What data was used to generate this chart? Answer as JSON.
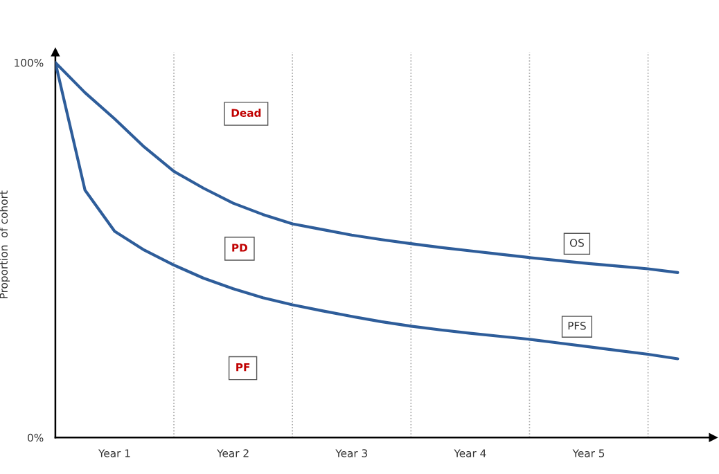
{
  "chart_data": {
    "type": "line",
    "ylabel": "Proportion  of cohort",
    "categories": [
      null,
      null,
      "Year 1",
      null,
      null,
      null,
      "Year 2",
      null,
      null,
      null,
      "Year 3",
      null,
      null,
      null,
      "Year 4",
      null,
      null,
      null,
      "Year 5",
      null,
      null,
      null
    ],
    "series": [
      {
        "name": "OS",
        "color": "#2e5d9a",
        "values": [
          100,
          92,
          85,
          77.5,
          71,
          66.5,
          62.5,
          59.5,
          57,
          55.5,
          54,
          52.8,
          51.7,
          50.7,
          49.8,
          48.9,
          48,
          47.2,
          46.4,
          45.7,
          45,
          44
        ]
      },
      {
        "name": "PFS",
        "color": "#2e5d9a",
        "values": [
          100,
          66,
          55,
          50,
          46,
          42.5,
          39.7,
          37.3,
          35.4,
          33.8,
          32.3,
          30.9,
          29.7,
          28.7,
          27.8,
          27,
          26.2,
          25.2,
          24.2,
          23.2,
          22.2,
          21
        ]
      }
    ],
    "ylim": [
      0,
      102.8
    ],
    "yticks": [
      {
        "value": 0,
        "label": "0%"
      },
      {
        "value": 100,
        "label": "100%"
      }
    ],
    "annotations": [
      "Dead",
      "PD",
      "PF"
    ],
    "grid": "x",
    "legend": false,
    "marker": "none",
    "line_style": "solid"
  }
}
